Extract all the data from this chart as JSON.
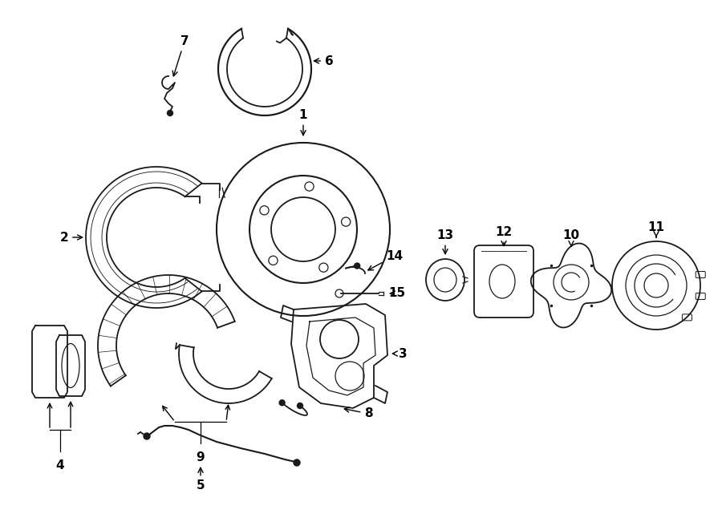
{
  "bg_color": "#ffffff",
  "line_color": "#1a1a1a",
  "label_fontsize": 11,
  "figsize": [
    9.0,
    6.61
  ],
  "dpi": 100,
  "xlim": [
    0,
    9
  ],
  "ylim": [
    0,
    6.61
  ]
}
